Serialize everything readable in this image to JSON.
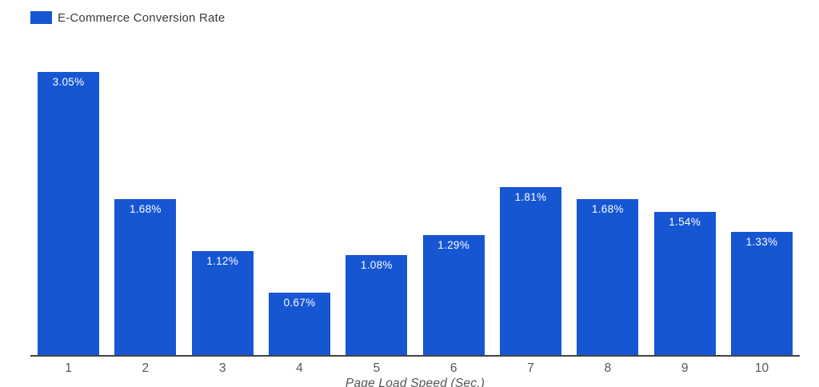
{
  "legend": {
    "label": "E-Commerce Conversion Rate"
  },
  "colors": {
    "bar": "#1656D3",
    "axis_line": "#424242",
    "axis_text": "#565656",
    "legend_text": "#3b3b3b",
    "value_label": "#ffffff",
    "background": "#ffffff"
  },
  "chart_data": {
    "type": "bar",
    "title": "E-Commerce Conversion Rate",
    "categories": [
      "1",
      "2",
      "3",
      "4",
      "5",
      "6",
      "7",
      "8",
      "9",
      "10"
    ],
    "values": [
      3.05,
      1.68,
      1.12,
      0.67,
      1.08,
      1.29,
      1.81,
      1.68,
      1.54,
      1.33
    ],
    "value_labels": [
      "3.05%",
      "1.68%",
      "1.12%",
      "0.67%",
      "1.08%",
      "1.29%",
      "1.81%",
      "1.68%",
      "1.54%",
      "1.33%"
    ],
    "xlabel": "Page Load Speed (Sec.)",
    "ylabel": "",
    "ylim": [
      0,
      3.05
    ],
    "grid": false,
    "y_axis_labels_visible": false,
    "legend_position": "top-left"
  }
}
